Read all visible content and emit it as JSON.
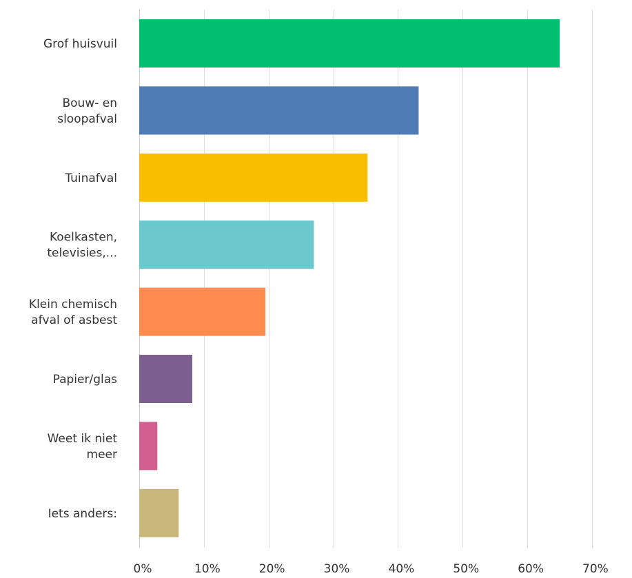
{
  "chart_data": {
    "type": "bar",
    "orientation": "horizontal",
    "categories": [
      [
        "Grof huisvuil"
      ],
      [
        "Bouw- en",
        "sloopafval"
      ],
      [
        "Tuinafval"
      ],
      [
        "Koelkasten,",
        "televisies,..."
      ],
      [
        "Klein chemisch",
        "afval of asbest"
      ],
      [
        "Papier/glas"
      ],
      [
        "Weet ik niet",
        "meer"
      ],
      [
        "Iets anders:"
      ]
    ],
    "values": [
      65.0,
      43.2,
      35.3,
      27.0,
      19.5,
      8.2,
      2.8,
      6.1
    ],
    "colors": [
      "#00BF6F",
      "#507CB6",
      "#F9BE00",
      "#6BC8CD",
      "#FF8B4F",
      "#7D5E90",
      "#D25F90",
      "#C8B77A"
    ],
    "xlim": [
      0,
      75
    ],
    "xticks": [
      0,
      10,
      20,
      30,
      40,
      50,
      60,
      70
    ],
    "xtick_labels": [
      "0%",
      "10%",
      "20%",
      "30%",
      "40%",
      "50%",
      "60%",
      "70%"
    ],
    "grid": true,
    "title": "",
    "xlabel": "",
    "ylabel": ""
  }
}
